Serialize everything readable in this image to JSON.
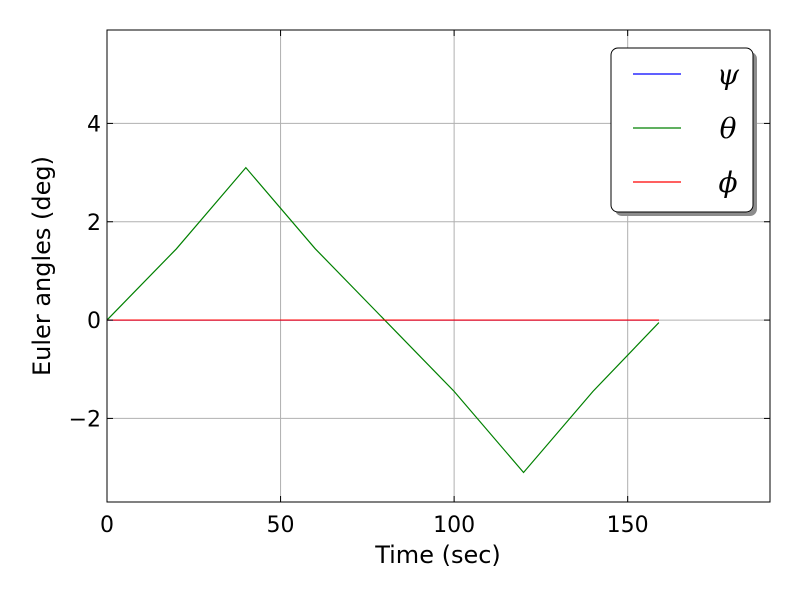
{
  "chart_data": {
    "type": "line",
    "title": "",
    "xlabel": "Time (sec)",
    "ylabel": "Euler angles (deg)",
    "xlim": [
      0,
      191
    ],
    "ylim": [
      -3.7,
      5.9
    ],
    "xticks": [
      0,
      50,
      100,
      150
    ],
    "xtick_labels": [
      "0",
      "50",
      "100",
      "150"
    ],
    "yticks": [
      -2,
      0,
      2,
      4
    ],
    "ytick_labels": [
      "−2",
      "0",
      "2",
      "4"
    ],
    "grid": true,
    "legend_position": "top-right",
    "series": [
      {
        "name": "ψ",
        "color": "#0000ff",
        "x": [
          0,
          159
        ],
        "y": [
          0,
          0
        ]
      },
      {
        "name": "θ",
        "color": "#008000",
        "x": [
          0,
          20,
          40,
          60,
          80,
          100,
          120,
          140,
          159
        ],
        "y": [
          0,
          1.45,
          3.1,
          1.45,
          0,
          -1.45,
          -3.1,
          -1.45,
          -0.05
        ]
      },
      {
        "name": "ϕ",
        "color": "#ff0000",
        "x": [
          0,
          159
        ],
        "y": [
          0,
          0
        ]
      }
    ]
  }
}
